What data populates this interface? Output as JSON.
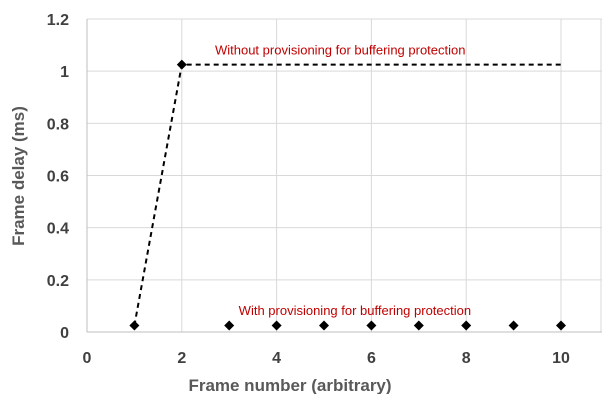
{
  "chart_data": {
    "type": "scatter",
    "title": "",
    "xlabel": "Frame number (arbitrary)",
    "ylabel": "Frame delay (ms)",
    "xlim": [
      0,
      10
    ],
    "ylim": [
      0,
      1.2
    ],
    "x_ticks": [
      0,
      2,
      4,
      6,
      8,
      10
    ],
    "y_ticks": [
      0,
      0.2,
      0.4,
      0.6,
      0.8,
      1,
      1.2
    ],
    "x_tick_labels": [
      "0",
      "2",
      "4",
      "6",
      "8",
      "10"
    ],
    "y_tick_labels": [
      "0",
      "0.2",
      "0.4",
      "0.6",
      "0.8",
      "1",
      "1.2"
    ],
    "grid": "vertical-and-horizontal",
    "legend": "none",
    "series": [
      {
        "name": "Without provisioning for buffering protection",
        "x": [
          1,
          2,
          10
        ],
        "y": [
          0.025,
          1.025,
          1.025
        ],
        "markers": [
          true,
          true,
          false
        ],
        "line_style": "dashed",
        "color": "#000000"
      },
      {
        "name": "With provisioning for buffering protection",
        "x": [
          3,
          4,
          5,
          6,
          7,
          8,
          9,
          10
        ],
        "y": [
          0.025,
          0.025,
          0.025,
          0.025,
          0.025,
          0.025,
          0.025,
          0.025
        ],
        "markers": [
          true,
          true,
          true,
          true,
          true,
          true,
          true,
          true
        ],
        "line_style": "none",
        "color": "#000000"
      }
    ],
    "annotations": [
      {
        "text": "Without provisioning for buffering protection",
        "x": 2.7,
        "y": 1.08,
        "color": "#c00000"
      },
      {
        "text": "With provisioning for buffering protection",
        "x": 3.2,
        "y": 0.08,
        "color": "#c00000"
      }
    ],
    "colors": {
      "grid": "#d9d9d9",
      "axis": "#bfbfbf",
      "marker": "#000000",
      "annotation": "#c00000"
    }
  }
}
